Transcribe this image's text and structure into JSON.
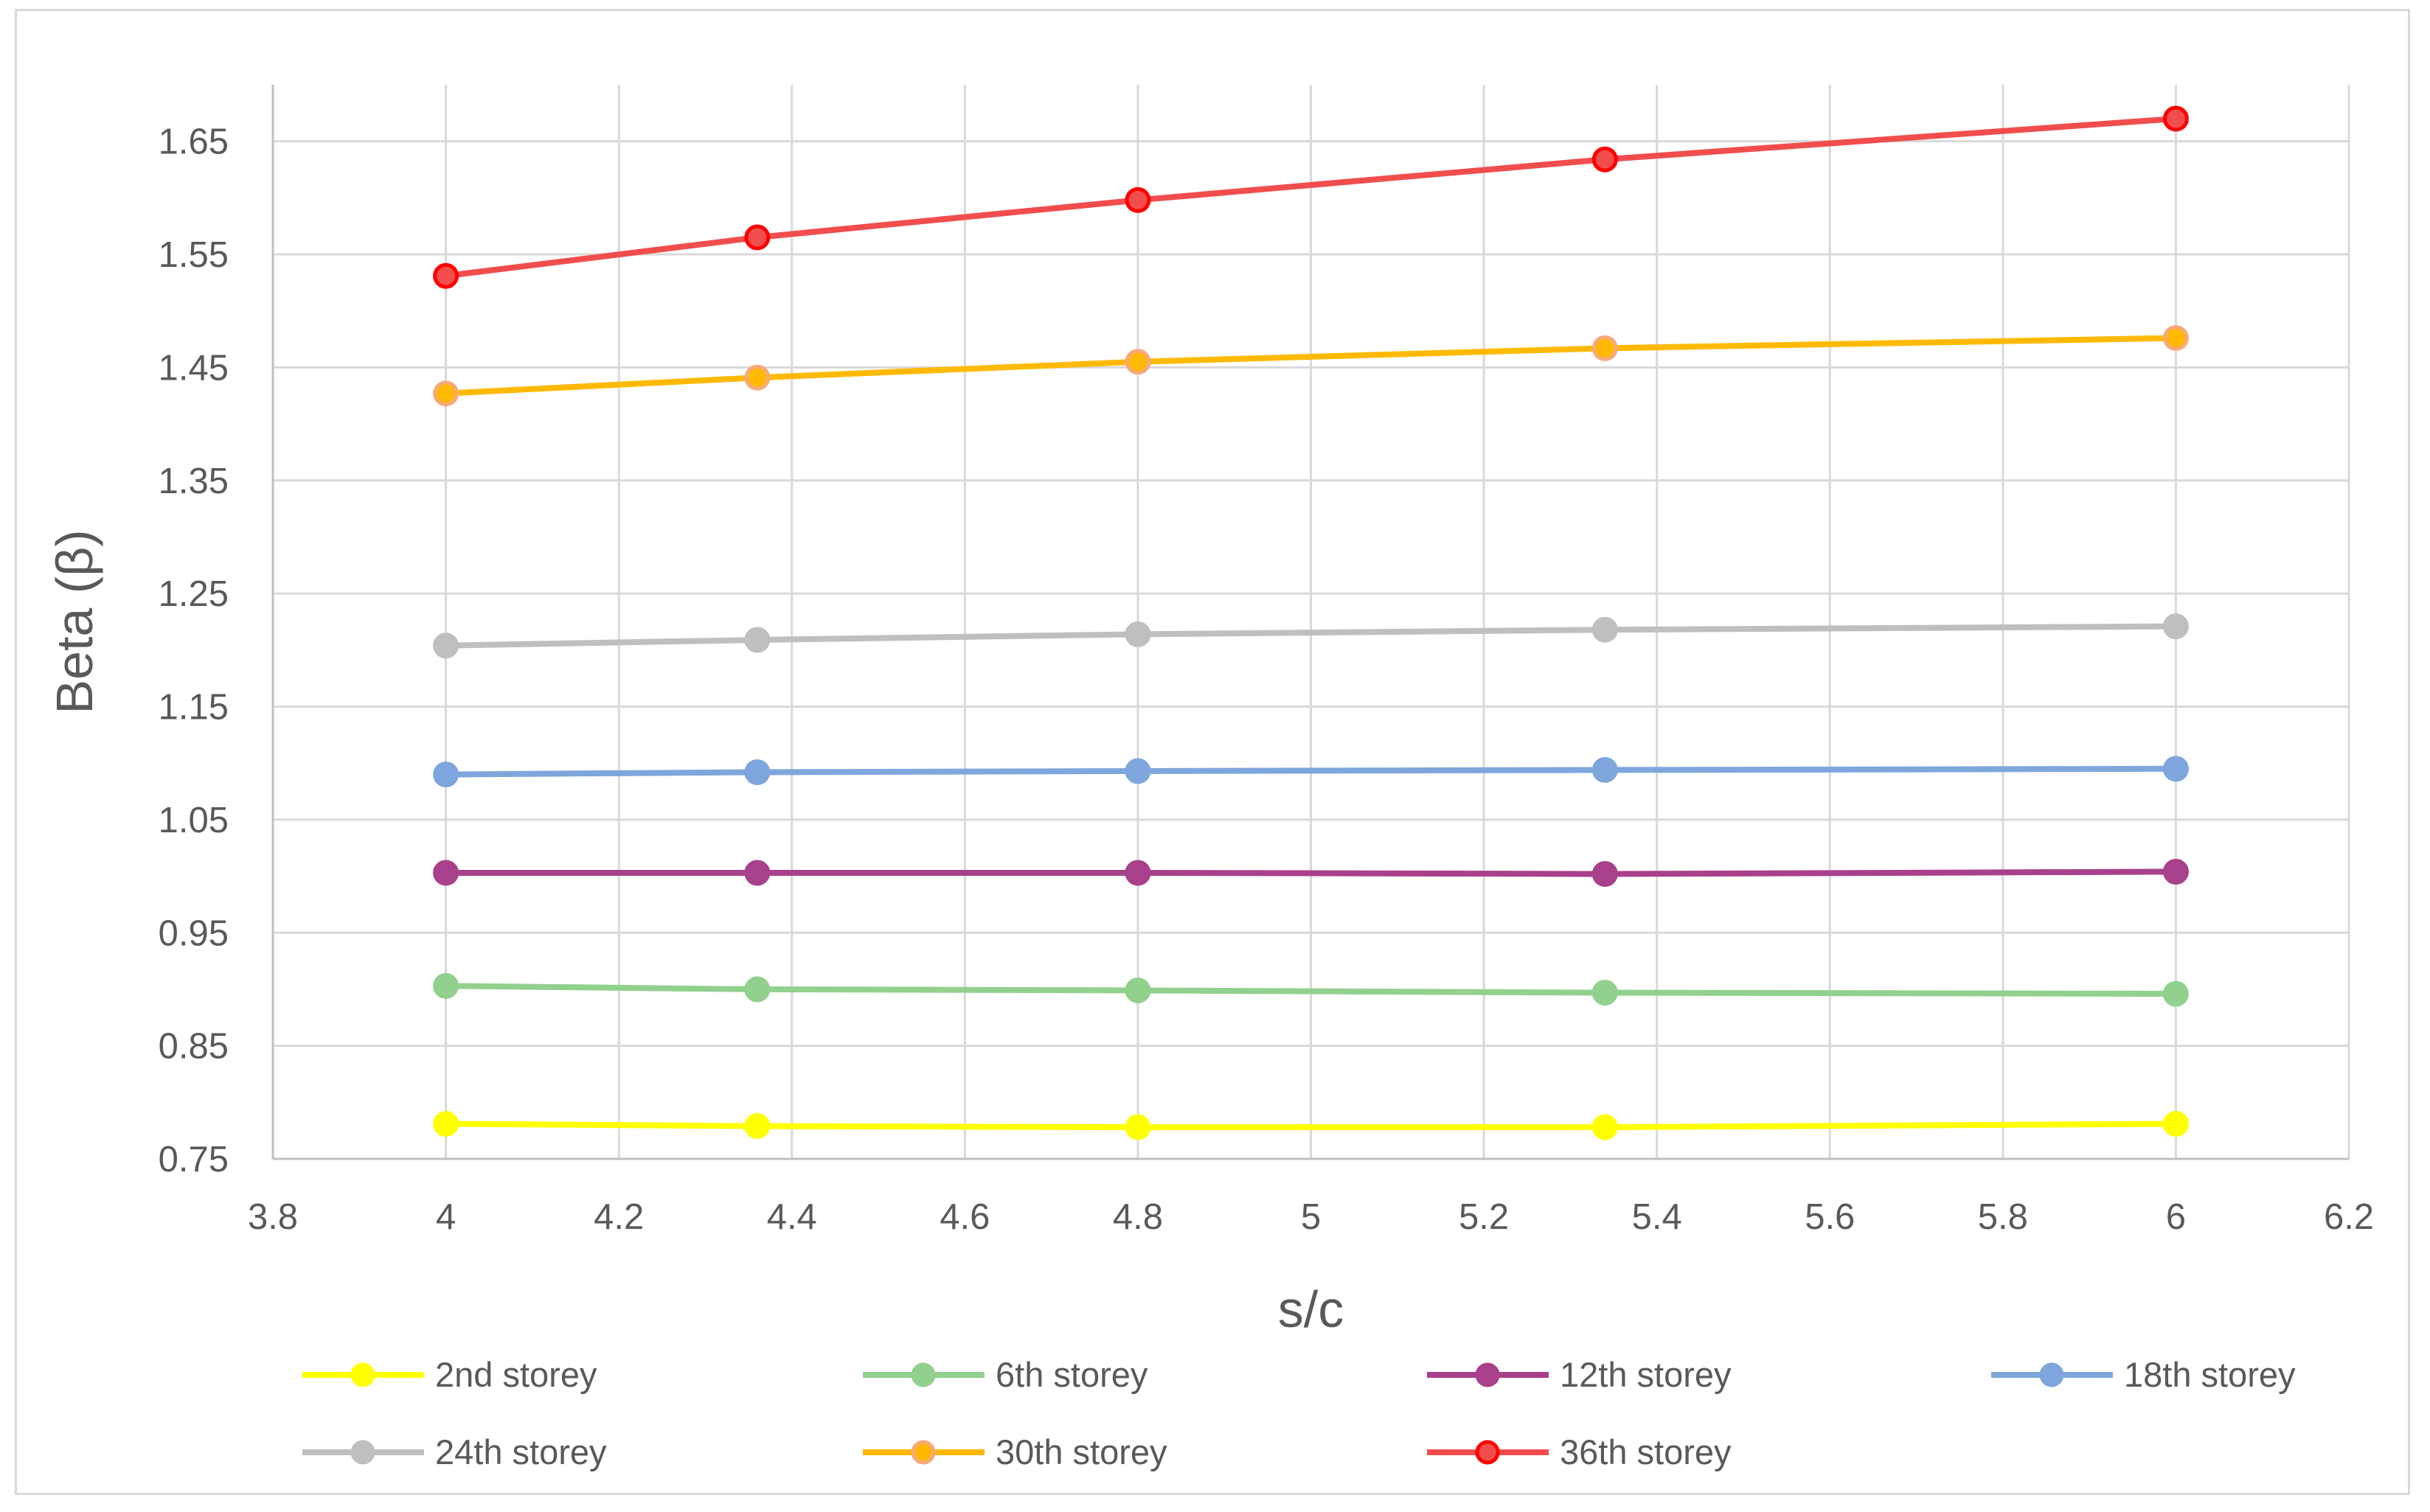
{
  "chart_data": {
    "type": "line",
    "xlabel": "s/c",
    "ylabel": "Beta (β)",
    "xlim": [
      3.8,
      6.2
    ],
    "ylim": [
      0.75,
      1.7
    ],
    "xticks": [
      "3.8",
      "4",
      "4.2",
      "4.4",
      "4.6",
      "4.8",
      "5",
      "5.2",
      "5.4",
      "5.6",
      "5.8",
      "6",
      "6.2"
    ],
    "yticks": [
      "0.75",
      "0.85",
      "0.95",
      "1.05",
      "1.15",
      "1.25",
      "1.35",
      "1.45",
      "1.55",
      "1.65"
    ],
    "grid": true,
    "legend_position": "bottom",
    "x": [
      4,
      4.36,
      4.8,
      5.34,
      6
    ],
    "series": [
      {
        "name": "2nd storey",
        "color": "#FFFF00",
        "marker_edge": "#FFFF00",
        "values": [
          0.781,
          0.779,
          0.778,
          0.778,
          0.781
        ]
      },
      {
        "name": "6th storey",
        "color": "#92D08E",
        "marker_edge": "#92D08E",
        "values": [
          0.903,
          0.9,
          0.899,
          0.897,
          0.896
        ]
      },
      {
        "name": "12th storey",
        "color": "#A9408C",
        "marker_edge": "#A9408C",
        "values": [
          1.003,
          1.003,
          1.003,
          1.002,
          1.004
        ]
      },
      {
        "name": "18th storey",
        "color": "#7EA6DD",
        "marker_edge": "#7EA6DD",
        "values": [
          1.09,
          1.092,
          1.093,
          1.094,
          1.095
        ]
      },
      {
        "name": "24th storey",
        "color": "#BFBFBF",
        "marker_edge": "#BFBFBF",
        "values": [
          1.204,
          1.209,
          1.214,
          1.218,
          1.221
        ]
      },
      {
        "name": "30th storey",
        "color": "#FFB900",
        "marker_edge": "#F8A97B",
        "values": [
          1.427,
          1.441,
          1.455,
          1.467,
          1.476
        ]
      },
      {
        "name": "36th storey",
        "color": "#F24D4D",
        "marker_edge": "#FF0000",
        "values": [
          1.531,
          1.565,
          1.598,
          1.634,
          1.67
        ]
      }
    ]
  }
}
